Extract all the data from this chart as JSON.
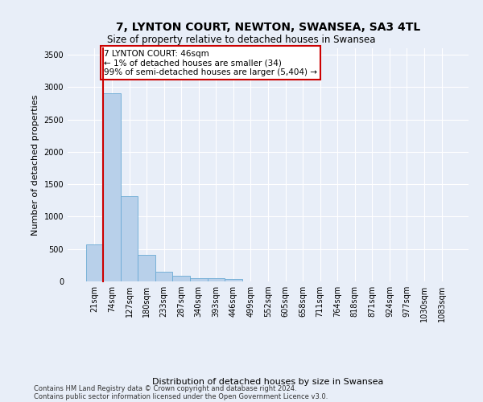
{
  "title": "7, LYNTON COURT, NEWTON, SWANSEA, SA3 4TL",
  "subtitle": "Size of property relative to detached houses in Swansea",
  "xlabel": "Distribution of detached houses by size in Swansea",
  "ylabel": "Number of detached properties",
  "categories": [
    "21sqm",
    "74sqm",
    "127sqm",
    "180sqm",
    "233sqm",
    "287sqm",
    "340sqm",
    "393sqm",
    "446sqm",
    "499sqm",
    "552sqm",
    "605sqm",
    "658sqm",
    "711sqm",
    "764sqm",
    "818sqm",
    "871sqm",
    "924sqm",
    "977sqm",
    "1030sqm",
    "1083sqm"
  ],
  "values": [
    570,
    2910,
    1310,
    415,
    155,
    85,
    55,
    48,
    42,
    0,
    0,
    0,
    0,
    0,
    0,
    0,
    0,
    0,
    0,
    0,
    0
  ],
  "bar_color": "#b8d0ea",
  "bar_edge_color": "#6aaad4",
  "highlight_color": "#cc0000",
  "annotation_title": "7 LYNTON COURT: 46sqm",
  "annotation_line1": "← 1% of detached houses are smaller (34)",
  "annotation_line2": "99% of semi-detached houses are larger (5,404) →",
  "annotation_box_color": "#cc0000",
  "ylim": [
    0,
    3600
  ],
  "yticks": [
    0,
    500,
    1000,
    1500,
    2000,
    2500,
    3000,
    3500
  ],
  "footer1": "Contains HM Land Registry data © Crown copyright and database right 2024.",
  "footer2": "Contains public sector information licensed under the Open Government Licence v3.0.",
  "bg_color": "#e8eef8",
  "plot_bg_color": "#e8eef8",
  "grid_color": "#ffffff",
  "title_fontsize": 10,
  "subtitle_fontsize": 8.5,
  "axis_ylabel_fontsize": 8,
  "xlabel_fontsize": 8,
  "tick_fontsize": 7,
  "footer_fontsize": 6
}
